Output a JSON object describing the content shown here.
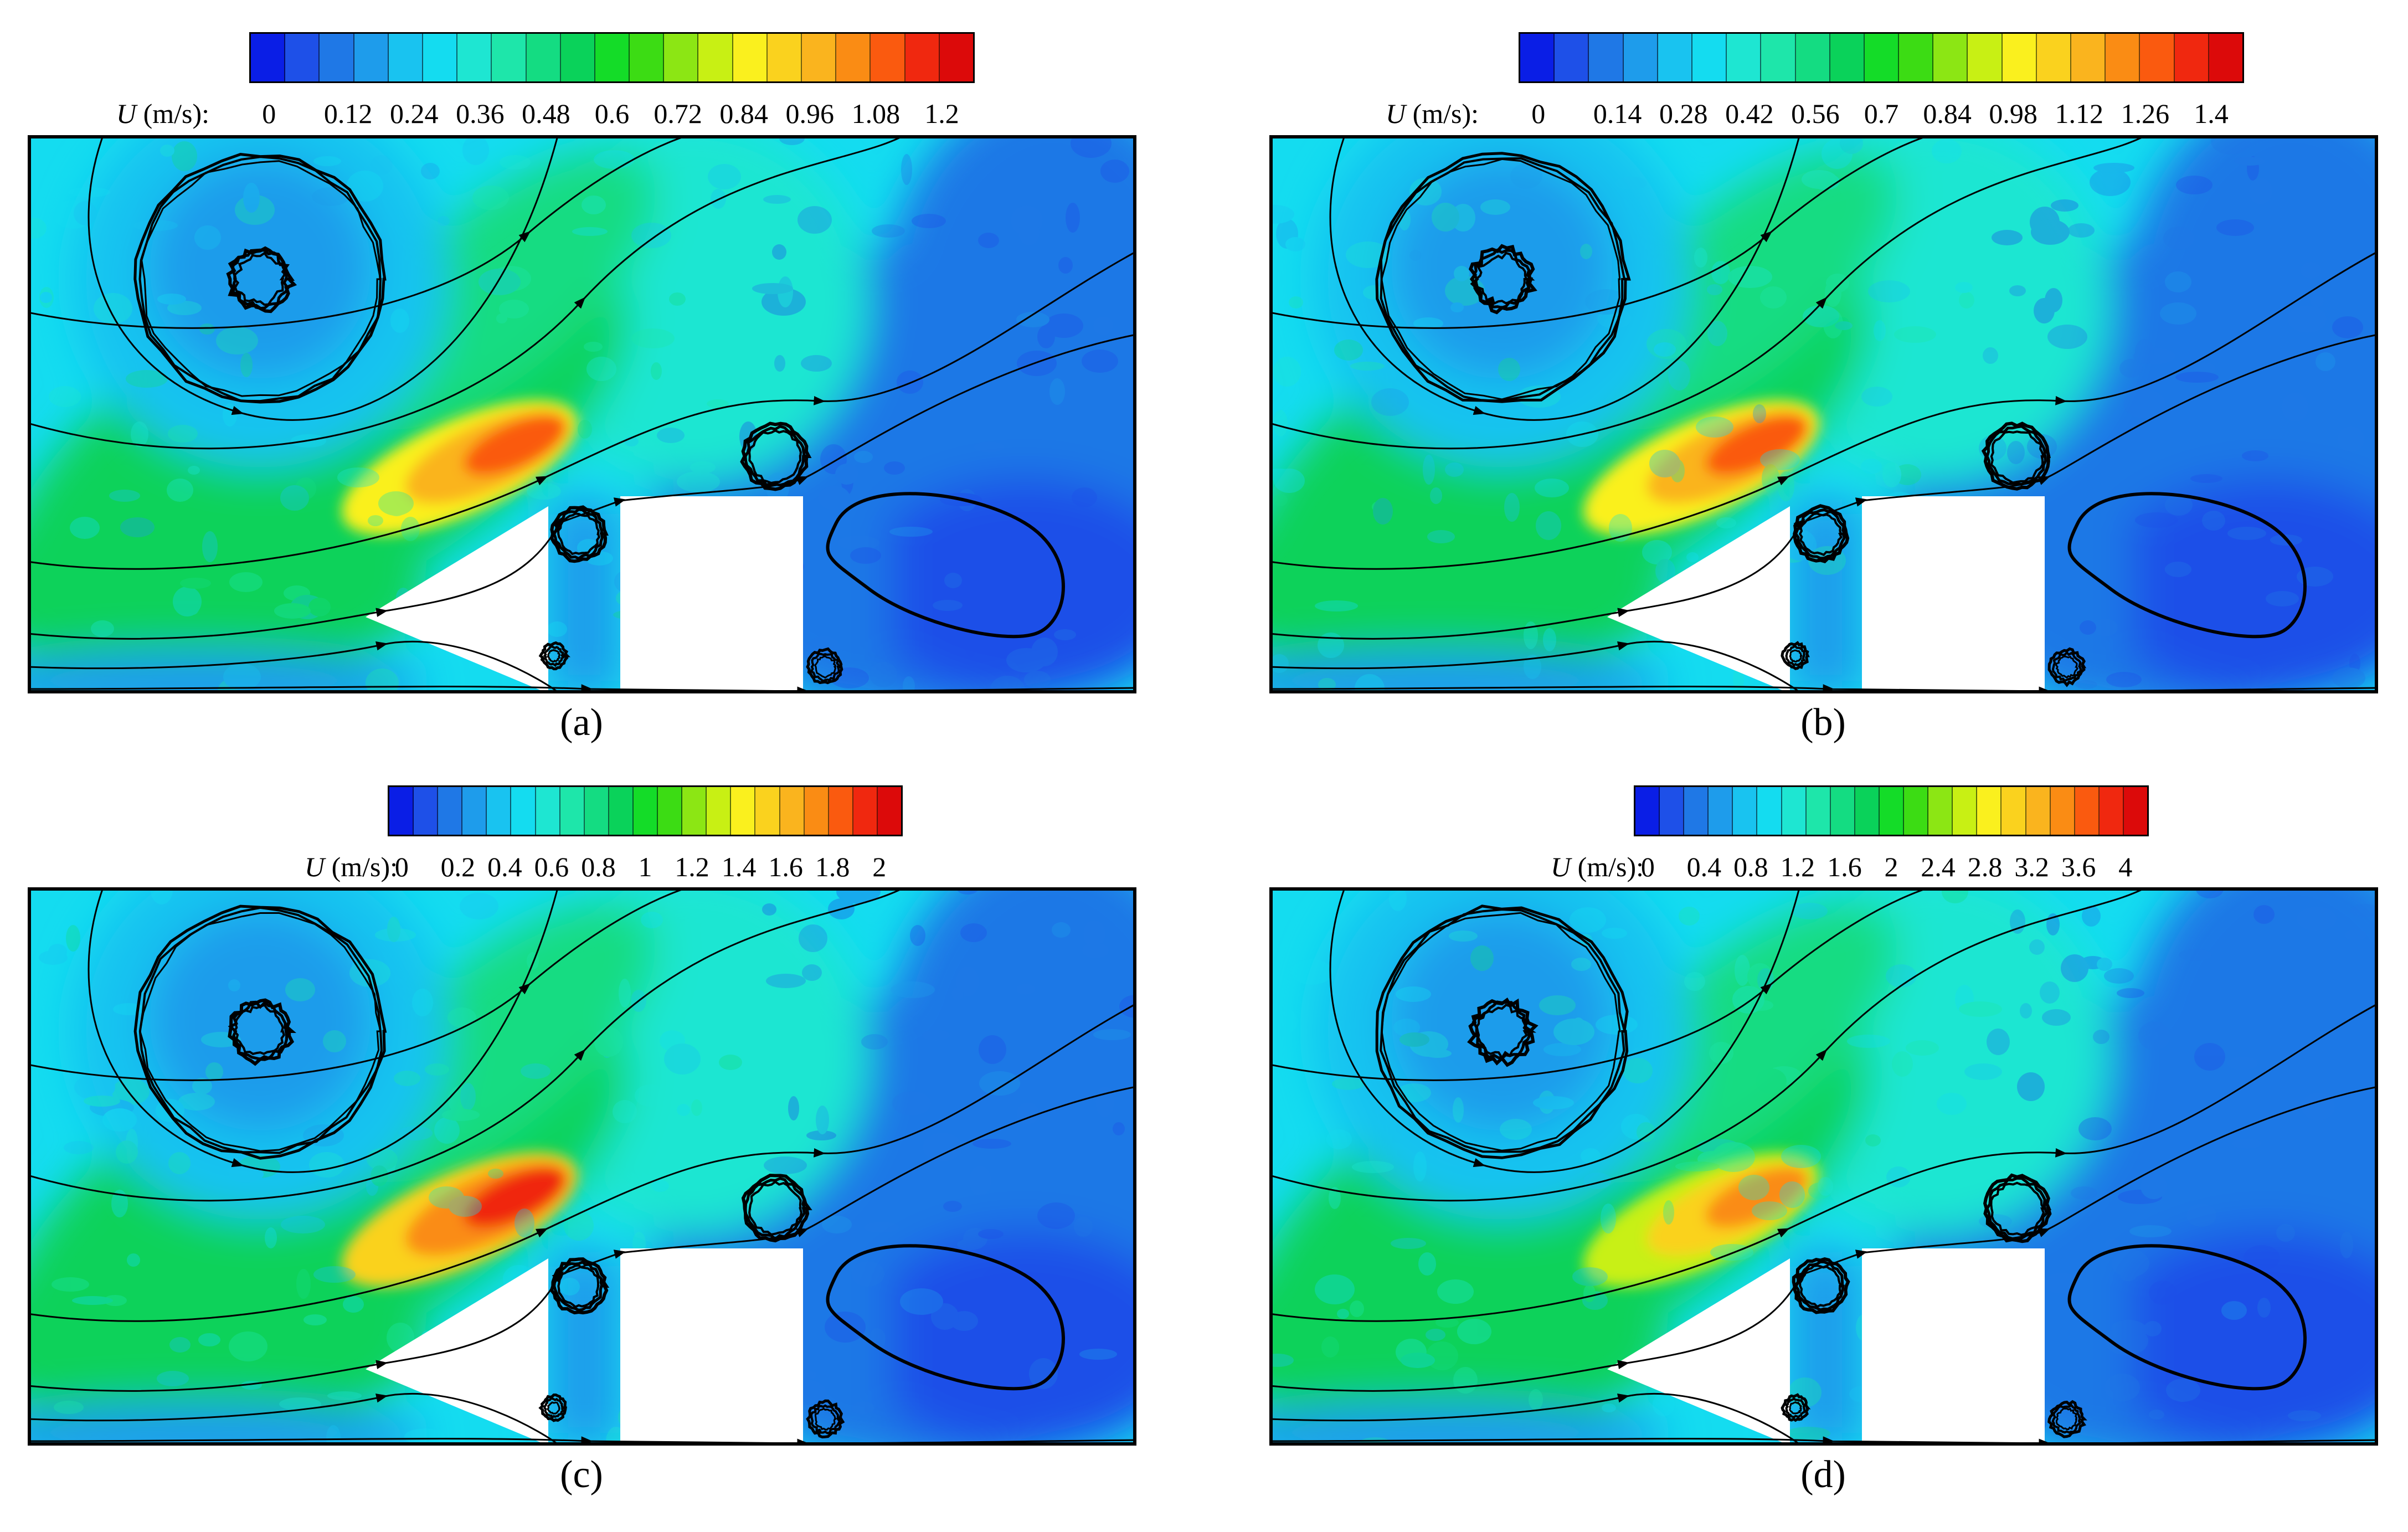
{
  "colorbar_colors": [
    "#0a1ee6",
    "#1e50e8",
    "#1f78e6",
    "#1e9ceb",
    "#19c3f0",
    "#14dcf0",
    "#1ee6d2",
    "#1ee6aa",
    "#14dc82",
    "#0ad25a",
    "#14dc28",
    "#3cdc14",
    "#8ce614",
    "#c8f014",
    "#faf01e",
    "#fad21e",
    "#fab41e",
    "#fa8c14",
    "#fa5a0f",
    "#f0280f",
    "#dc0a0a"
  ],
  "chart_data": [
    {
      "type": "heatmap",
      "caption": "(a)",
      "colorbar": {
        "label_var": "U",
        "label_unit": " (m/s):",
        "ticks": [
          "0",
          "0.12",
          "0.24",
          "0.36",
          "0.48",
          "0.6",
          "0.72",
          "0.84",
          "0.96",
          "1.08",
          "1.2"
        ],
        "range": [
          0,
          1.2
        ]
      },
      "jet_peak_level": 0.95
    },
    {
      "type": "heatmap",
      "caption": "(b)",
      "colorbar": {
        "label_var": "U",
        "label_unit": " (m/s):",
        "ticks": [
          "0",
          "0.14",
          "0.28",
          "0.42",
          "0.56",
          "0.7",
          "0.84",
          "0.98",
          "1.12",
          "1.26",
          "1.4"
        ],
        "range": [
          0,
          1.4
        ]
      },
      "jet_peak_level": 0.98
    },
    {
      "type": "heatmap",
      "caption": "(c)",
      "colorbar": {
        "label_var": "U",
        "label_unit": " (m/s):",
        "ticks": [
          "0",
          "0.2",
          "0.4",
          "0.6",
          "0.8",
          "1",
          "1.2",
          "1.4",
          "1.6",
          "1.8",
          "2"
        ],
        "range": [
          0,
          2
        ]
      },
      "jet_peak_level": 1.0
    },
    {
      "type": "heatmap",
      "caption": "(d)",
      "colorbar": {
        "label_var": "U",
        "label_unit": " (m/s):",
        "ticks": [
          "0",
          "0.4",
          "0.8",
          "1.2",
          "1.6",
          "2",
          "2.4",
          "2.8",
          "3.2",
          "3.6",
          "4"
        ],
        "range": [
          0,
          4
        ]
      },
      "jet_peak_level": 0.9
    }
  ]
}
